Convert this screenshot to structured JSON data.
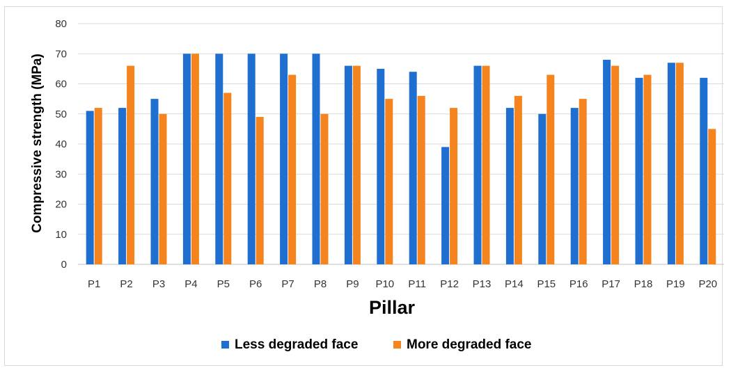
{
  "chart_data": {
    "type": "bar",
    "title": "",
    "xlabel": "Pillar",
    "ylabel": "Compressive strength (MPa)",
    "ylim": [
      0,
      80
    ],
    "yticks": [
      0,
      10,
      20,
      30,
      40,
      50,
      60,
      70,
      80
    ],
    "grid": "horizontal",
    "legend_position": "bottom",
    "categories": [
      "P1",
      "P2",
      "P3",
      "P4",
      "P5",
      "P6",
      "P7",
      "P8",
      "P9",
      "P10",
      "P11",
      "P12",
      "P13",
      "P14",
      "P15",
      "P16",
      "P17",
      "P18",
      "P19",
      "P20"
    ],
    "series": [
      {
        "name": "Less degraded face",
        "color": "#1f6fd0",
        "values": [
          51,
          52,
          55,
          70,
          70,
          70,
          70,
          70,
          66,
          65,
          64,
          39,
          66,
          52,
          50,
          52,
          68,
          62,
          67,
          62
        ]
      },
      {
        "name": "More degraded face",
        "color": "#f5841f",
        "values": [
          52,
          66,
          50,
          70,
          57,
          49,
          63,
          50,
          66,
          55,
          56,
          52,
          66,
          56,
          63,
          55,
          66,
          63,
          67,
          45
        ]
      }
    ]
  }
}
